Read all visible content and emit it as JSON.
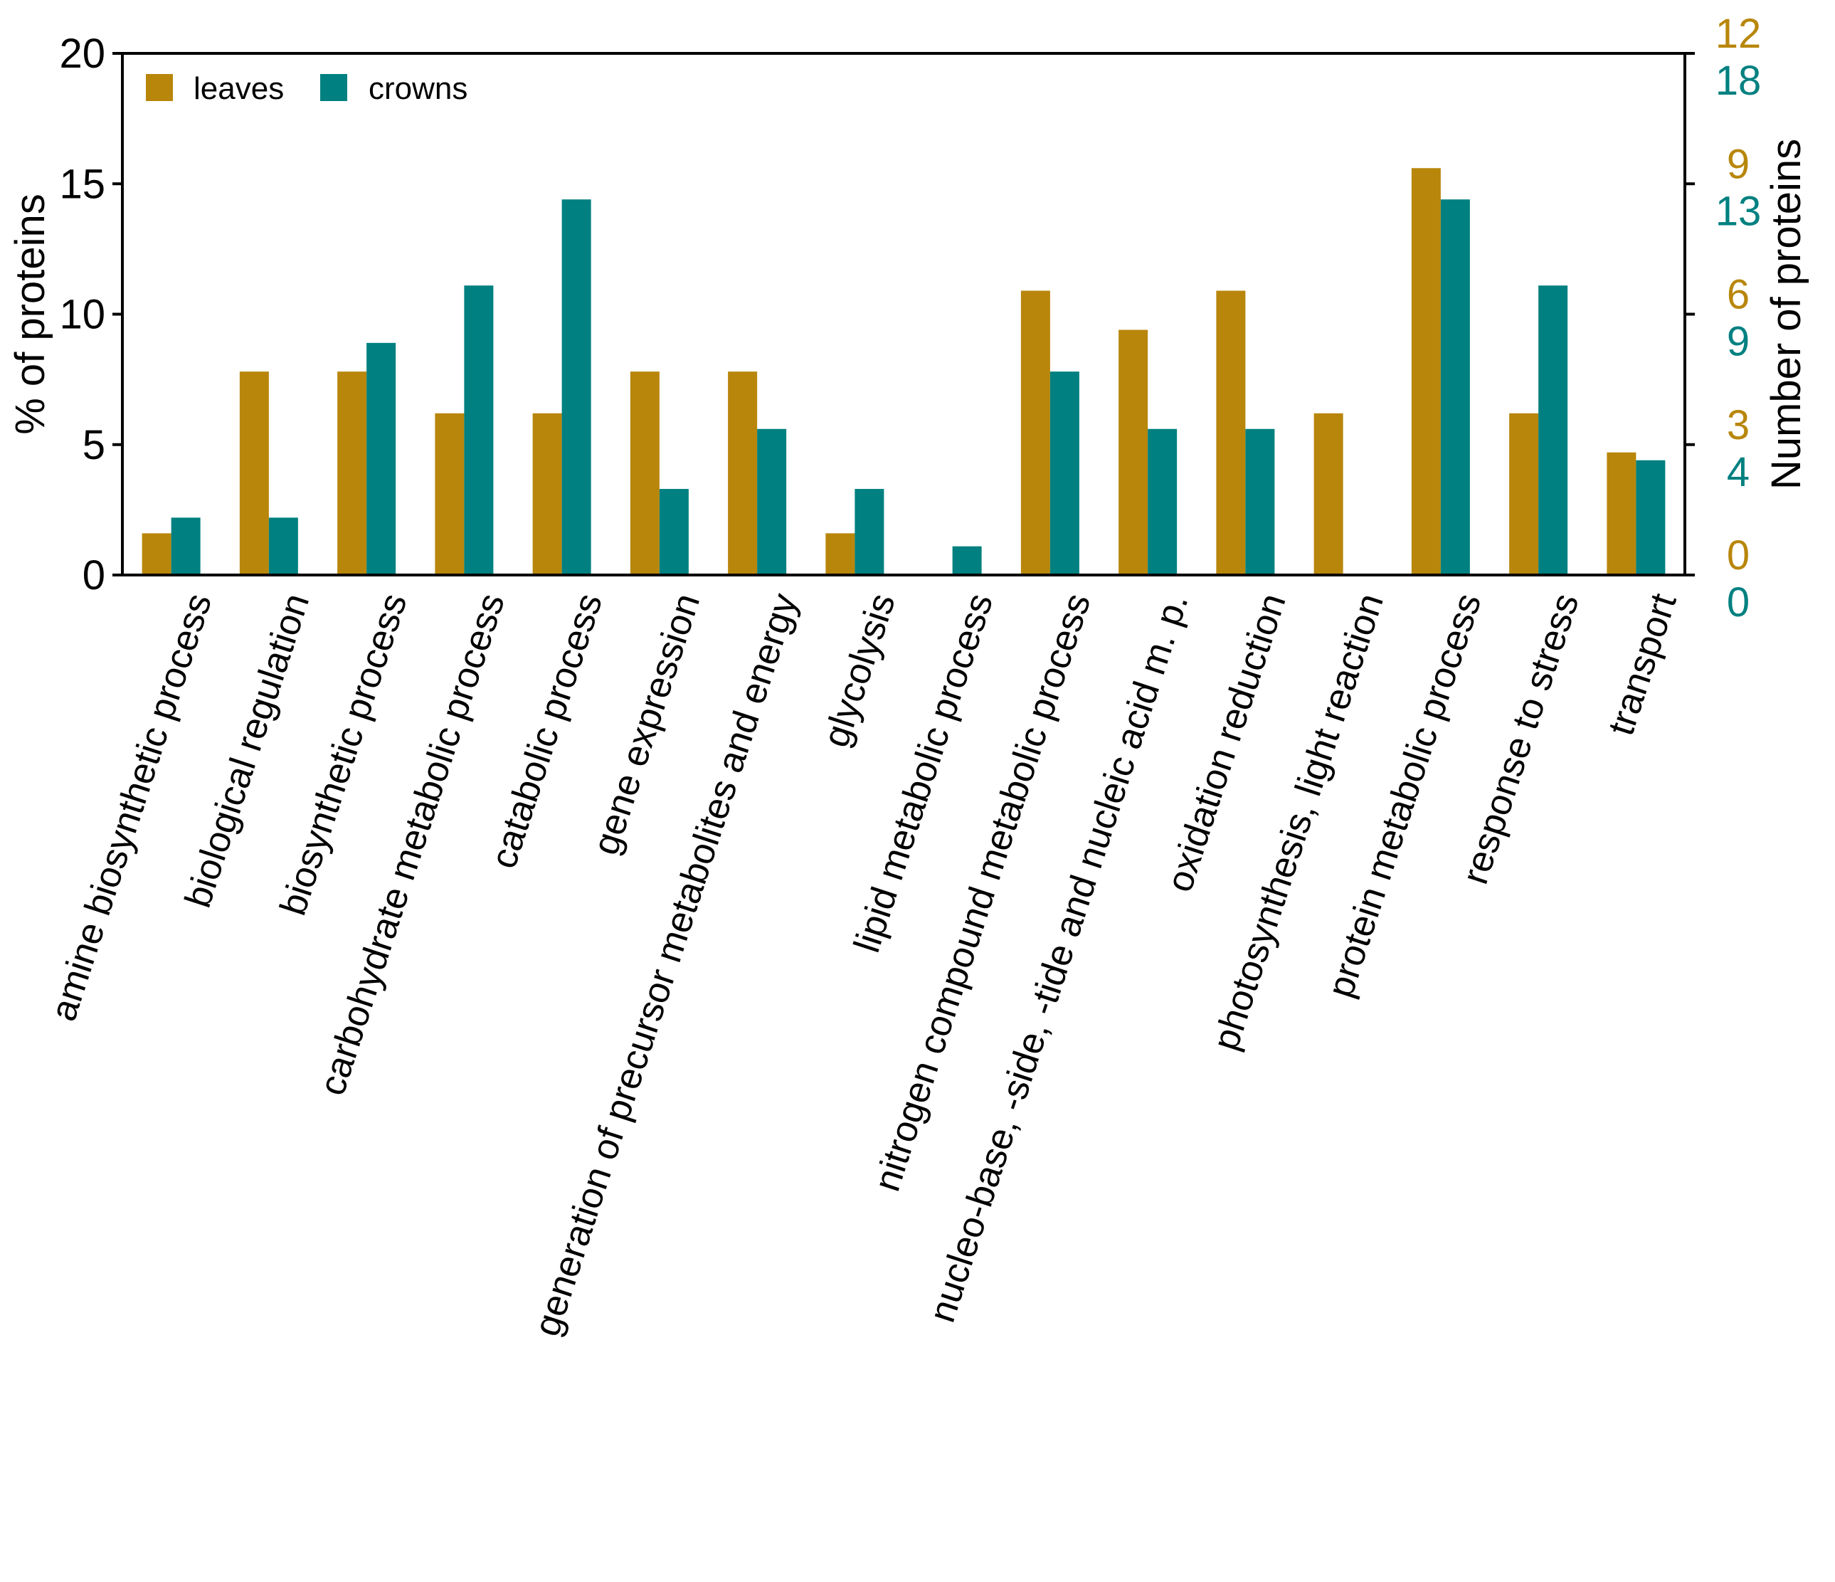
{
  "chart_data": {
    "type": "bar",
    "title": "",
    "categories": [
      "amine biosynthetic process",
      "biological regulation",
      "biosynthetic process",
      "carbohydrate metabolic process",
      "catabolic process",
      "gene expression",
      "generation of precursor metabolites and energy",
      "glycolysis",
      "lipid metabolic process",
      "nitrogen compound metabolic process",
      "nucleo-base, -side, -tide and nucleic acid m. p.",
      "oxidation reduction",
      "photosynthesis, light reaction",
      "protein metabolic process",
      "response to stress",
      "transport"
    ],
    "series": [
      {
        "name": "leaves",
        "color": "#B8860B",
        "values": [
          1.6,
          7.8,
          7.8,
          6.2,
          6.2,
          7.8,
          7.8,
          1.6,
          0,
          10.9,
          9.4,
          10.9,
          6.2,
          15.6,
          6.2,
          4.7
        ]
      },
      {
        "name": "crowns",
        "color": "#008080",
        "values": [
          2.2,
          2.2,
          8.9,
          11.1,
          14.4,
          3.3,
          5.6,
          3.3,
          1.1,
          7.8,
          5.6,
          5.6,
          0,
          14.4,
          11.1,
          4.4
        ]
      }
    ],
    "ylabel": "% of proteins",
    "ylim": [
      0,
      20
    ],
    "yticks": [
      "0",
      "5",
      "10",
      "15",
      "20"
    ],
    "y2label": "Number of proteins",
    "y2_leaves_ticks": [
      "0",
      "3",
      "6",
      "9",
      "12"
    ],
    "y2_crowns_ticks": [
      "0",
      "4",
      "9",
      "13",
      "18"
    ],
    "grid": false,
    "legend_position": "top-left"
  }
}
